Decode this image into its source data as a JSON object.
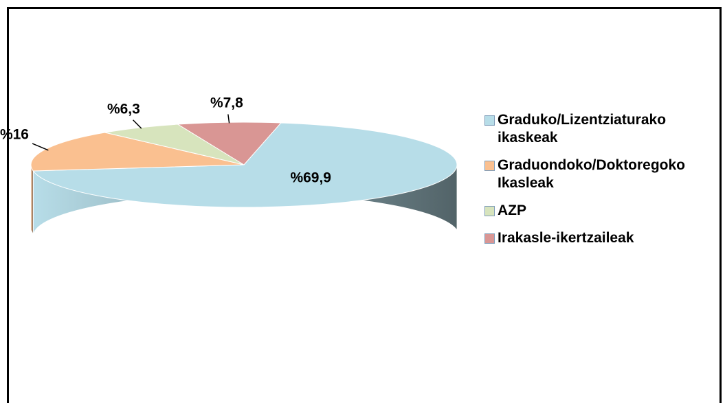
{
  "chart_data": {
    "type": "pie",
    "categories": [
      "Graduko/Lizentziaturako ikaskeak",
      "Graduondoko/Doktoregoko Ikasleak",
      "AZP",
      "Irakasle-ikertzaileak"
    ],
    "values": [
      69.9,
      16,
      6.3,
      7.8
    ],
    "value_labels": [
      "%69,9",
      "%16",
      "%6,3",
      "%7,8"
    ],
    "colors": [
      "#b7dde8",
      "#fac090",
      "#d7e4bd",
      "#d99694"
    ],
    "legend": "right"
  }
}
